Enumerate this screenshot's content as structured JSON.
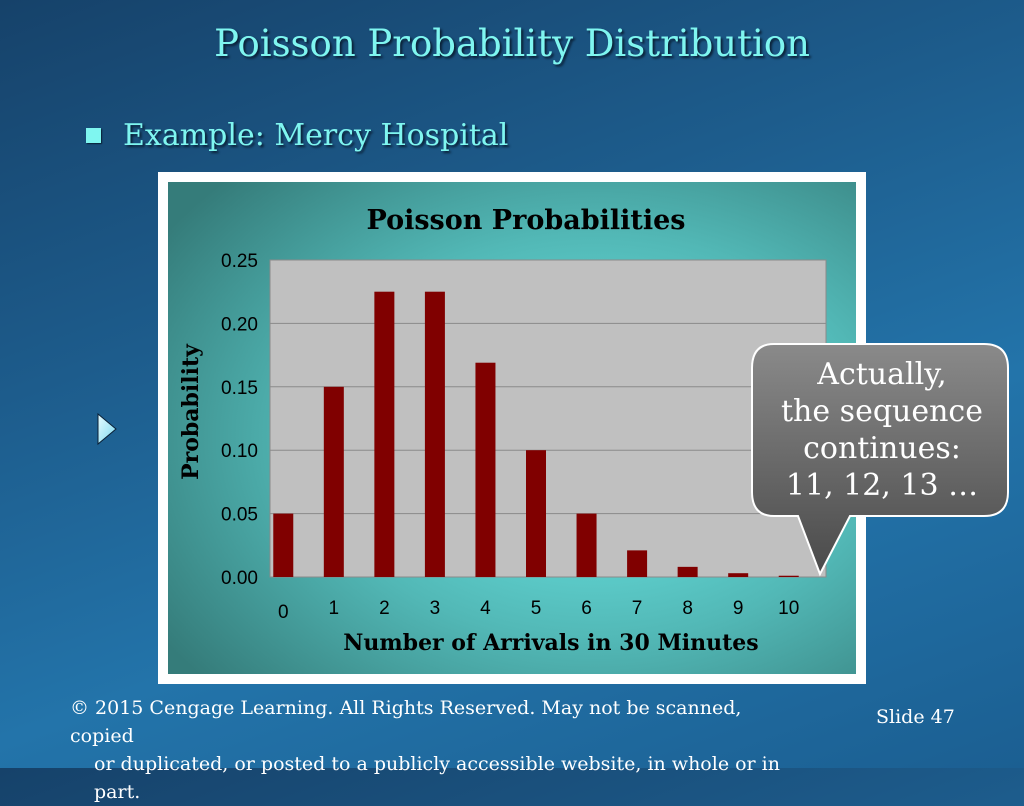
{
  "slide": {
    "title": "Poisson Probability Distribution",
    "bullet": "Example:  Mercy Hospital",
    "callout": [
      "Actually,",
      "the sequence",
      "continues:",
      "11, 12, 13  …"
    ],
    "footer": {
      "copyright_line1": "© 2015  Cengage Learning.  All Rights Reserved.  May not be scanned, copied",
      "copyright_line2": "or duplicated, or posted to a publicly accessible website, in whole or in part.",
      "slide_label": "Slide  47"
    },
    "colors": {
      "title": "#7ff6f0",
      "bar": "#800000",
      "plot_bg": "#c0c0c0",
      "chart_bg_outer": "#357c7a",
      "chart_bg_inner": "#6ff0ee"
    }
  },
  "chart_data": {
    "type": "bar",
    "title": "Poisson Probabilities",
    "xlabel": "Number of Arrivals in 30 Minutes",
    "ylabel": "Probability",
    "categories": [
      "0",
      "1",
      "2",
      "3",
      "4",
      "5",
      "6",
      "7",
      "8",
      "9",
      "10"
    ],
    "values": [
      0.05,
      0.15,
      0.225,
      0.225,
      0.169,
      0.1,
      0.05,
      0.021,
      0.008,
      0.003,
      0.001
    ],
    "ylim": [
      0,
      0.25
    ],
    "yticks": [
      "0.00",
      "0.05",
      "0.10",
      "0.15",
      "0.20",
      "0.25"
    ],
    "grid": true,
    "legend": false
  }
}
